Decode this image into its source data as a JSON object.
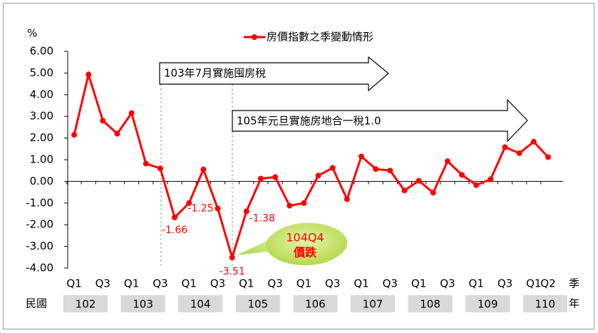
{
  "chart_data": {
    "type": "line",
    "y_unit": "%",
    "legend": "房價指數之季變動情形",
    "color": "#ff0000",
    "categories": [
      "Q1",
      null,
      "Q3",
      null,
      "Q1",
      null,
      "Q3",
      null,
      "Q1",
      null,
      "Q3",
      null,
      "Q1",
      null,
      "Q3",
      null,
      "Q1",
      null,
      "Q3",
      null,
      "Q1",
      null,
      "Q3",
      null,
      "Q1",
      null,
      "Q3",
      null,
      "Q1",
      null,
      "Q3",
      null,
      "Q1",
      "Q2"
    ],
    "values": [
      2.15,
      4.93,
      2.8,
      2.2,
      3.15,
      0.82,
      0.6,
      -1.66,
      -1.0,
      0.55,
      -1.25,
      -3.51,
      -1.38,
      0.13,
      0.2,
      -1.12,
      -1.0,
      0.27,
      0.62,
      -0.82,
      1.15,
      0.57,
      0.5,
      -0.42,
      0.03,
      -0.52,
      0.93,
      0.3,
      -0.17,
      0.1,
      1.58,
      1.3,
      1.83,
      1.12
    ],
    "value_labels": [
      null,
      null,
      null,
      null,
      null,
      null,
      null,
      "-1.66",
      null,
      null,
      "-1.25",
      "-3.51",
      "-1.38",
      null,
      null,
      null,
      null,
      null,
      null,
      null,
      null,
      null,
      null,
      null,
      null,
      null,
      null,
      null,
      null,
      null,
      null,
      null,
      null,
      null
    ],
    "ylim": [
      -4,
      6
    ],
    "yticks": [
      {
        "value": 6,
        "label": "6.00"
      },
      {
        "value": 5,
        "label": "5.00"
      },
      {
        "value": 4,
        "label": "4.00"
      },
      {
        "value": 3,
        "label": "3.00"
      },
      {
        "value": 2,
        "label": "2.00"
      },
      {
        "value": 1,
        "label": "1.00"
      },
      {
        "value": 0,
        "label": "0.00"
      },
      {
        "value": -1,
        "label": "-1.00"
      },
      {
        "value": -2,
        "label": "-2.00"
      },
      {
        "value": -3,
        "label": "-3.00"
      },
      {
        "value": -4,
        "label": "-4.00"
      }
    ],
    "quarter_axis_label": "季",
    "year_axis_prefix": "民國",
    "year_axis_label": "年",
    "years": [
      "102",
      "103",
      "104",
      "105",
      "106",
      "107",
      "108",
      "109",
      "110"
    ],
    "annotations": [
      "103年7月實施囤房稅",
      "105年元旦實施房地合一稅1.0"
    ],
    "callout": [
      "104Q4",
      "價跌"
    ]
  }
}
